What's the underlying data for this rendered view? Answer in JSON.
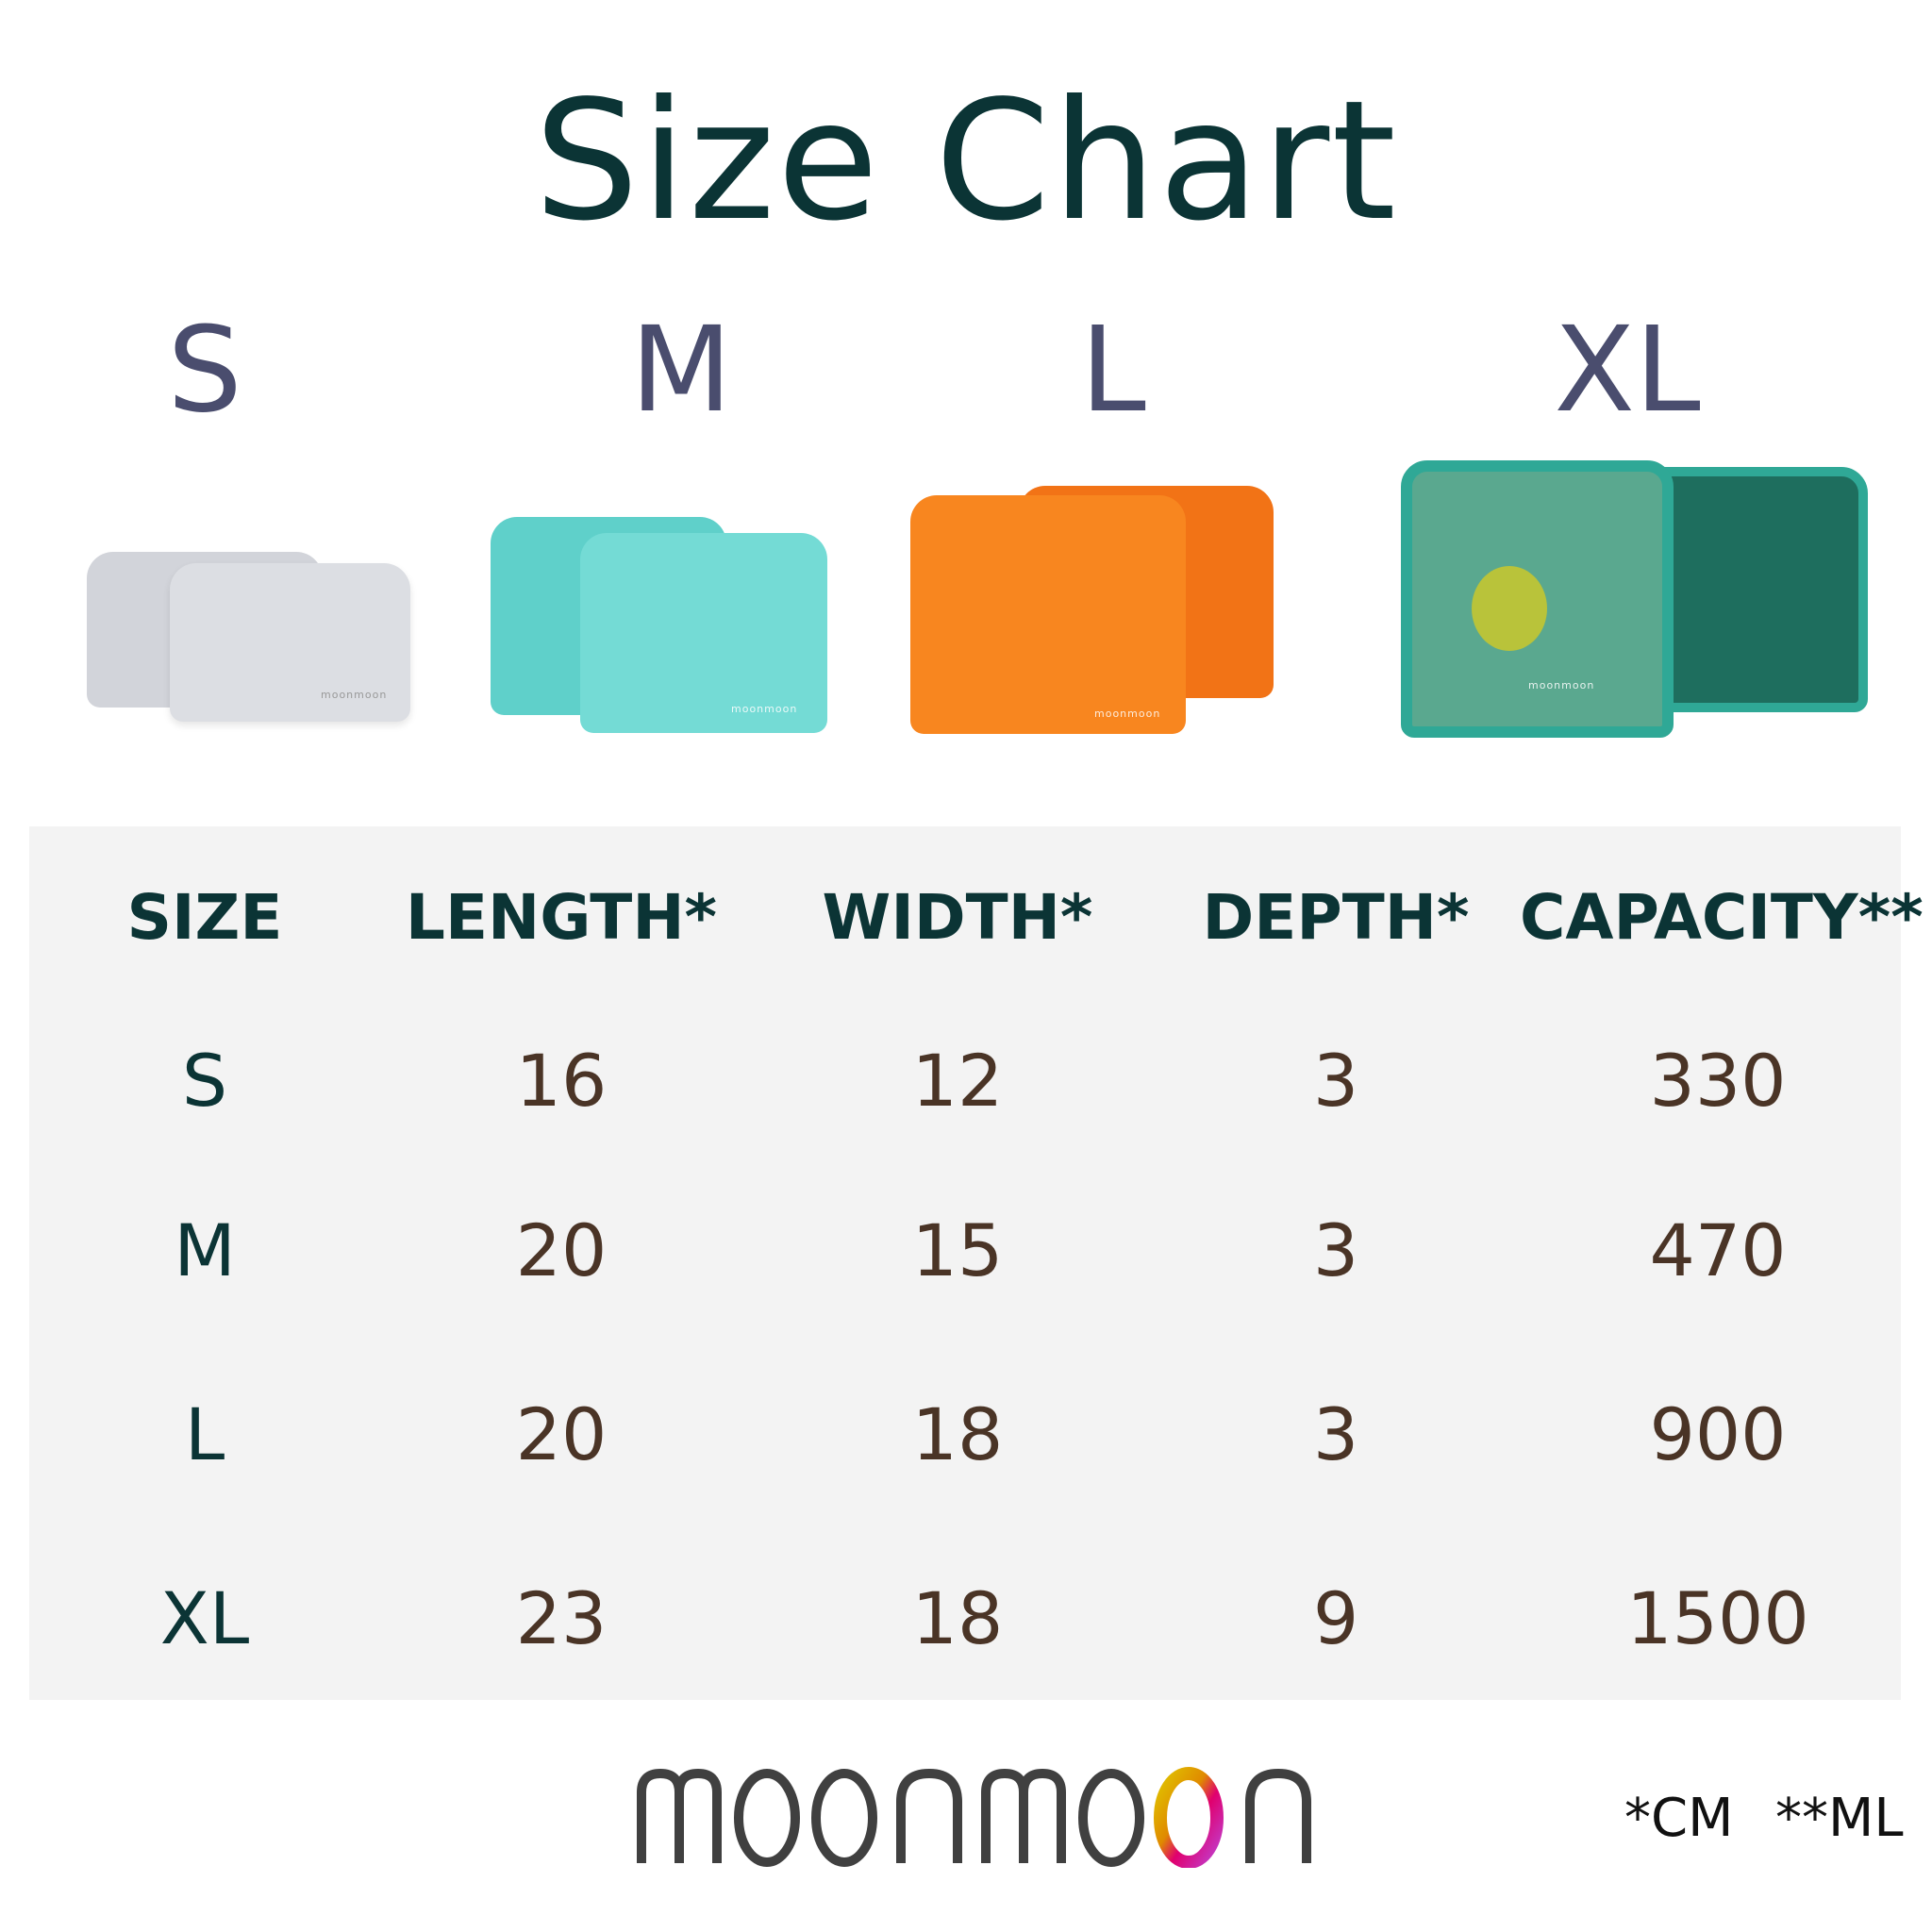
{
  "title": "Size Chart",
  "sizes": [
    "S",
    "M",
    "L",
    "XL"
  ],
  "product_colors": {
    "S": "#d9dbe0",
    "M": "#6fd8d2",
    "L": "#f7811f",
    "XL": "#2fa896"
  },
  "bag_brand": "moonmoon",
  "table": {
    "headers": [
      "SIZE",
      "LENGTH*",
      "WIDTH*",
      "DEPTH*",
      "CAPACITY**"
    ],
    "rows": [
      [
        "S",
        "16",
        "12",
        "3",
        "330"
      ],
      [
        "M",
        "20",
        "15",
        "3",
        "470"
      ],
      [
        "L",
        "20",
        "18",
        "3",
        "900"
      ],
      [
        "XL",
        "23",
        "18",
        "9",
        "1500"
      ]
    ]
  },
  "logo": "moonmoon",
  "footnotes": {
    "cm": "*CM",
    "ml": "**ML"
  }
}
